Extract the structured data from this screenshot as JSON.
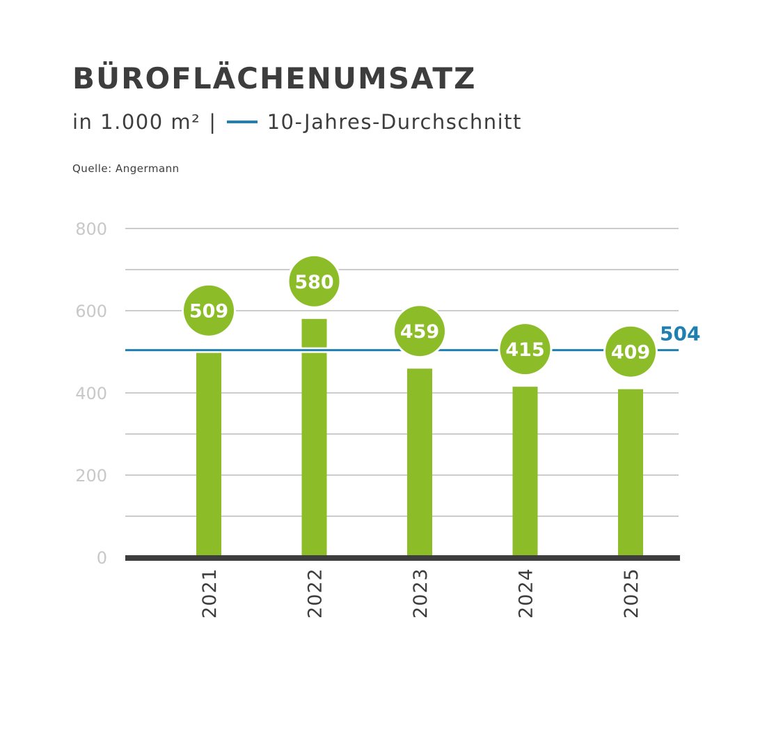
{
  "colors": {
    "bar": "#8cbd28",
    "average": "#1f7fb1",
    "text": "#3d3d3d",
    "grid": "#cccccc",
    "axis": "#3d3d3d",
    "tick": "#c8c8c8"
  },
  "header": {
    "title": "BÜROFLÄCHENUMSATZ",
    "unit": "in  1.000 m²",
    "separator": "|",
    "legend_label": "10-Jahres-Durchschnitt",
    "source": "Quelle: Angermann"
  },
  "chart_data": {
    "type": "bar",
    "title": "BÜROFLÄCHENUMSATZ",
    "subtitle": "in  1.000 m² | 10-Jahres-Durchschnitt",
    "xlabel": "",
    "ylabel": "",
    "categories": [
      "2021",
      "2022",
      "2023",
      "2024",
      "2025"
    ],
    "series": [
      {
        "name": "Büroflächenumsatz",
        "values": [
          509,
          580,
          459,
          415,
          409
        ]
      }
    ],
    "data_labels": [
      "509",
      "580",
      "459",
      "415",
      "409"
    ],
    "reference_line": {
      "name": "10-Jahres-Durchschnitt",
      "value": 504,
      "label": "504"
    },
    "ylim": [
      0,
      800
    ],
    "yticks": [
      0,
      200,
      400,
      600,
      800
    ],
    "ytick_labels": [
      "0",
      "200",
      "400",
      "600",
      "800"
    ],
    "minor_gridlines": [
      100,
      300,
      500,
      700
    ],
    "grid": true,
    "legend": "top-left"
  }
}
